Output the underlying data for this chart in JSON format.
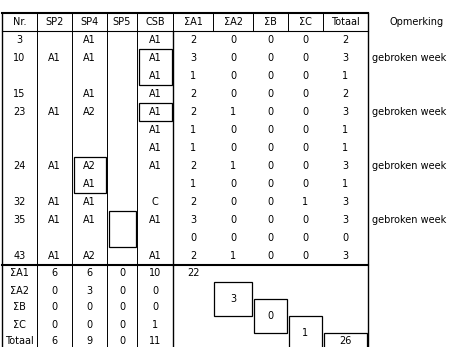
{
  "headers": [
    "Nr.",
    "SP2",
    "SP4",
    "SP5",
    "CSB",
    "ΣA1",
    "ΣA2",
    "ΣB",
    "ΣC",
    "Totaal",
    "Opmerking"
  ],
  "rows": [
    {
      "nr": "3",
      "sp2": "",
      "sp4": "A1",
      "sp5": "",
      "csb": "A1",
      "sa1": "2",
      "sa2": "0",
      "sb": "0",
      "sc": "0",
      "tot": "2",
      "opm": ""
    },
    {
      "nr": "10",
      "sp2": "A1",
      "sp4": "A1",
      "sp5": "",
      "csb": "A1",
      "sa1": "3",
      "sa2": "0",
      "sb": "0",
      "sc": "0",
      "tot": "3",
      "opm": "gebroken week"
    },
    {
      "nr": "",
      "sp2": "",
      "sp4": "",
      "sp5": "",
      "csb": "A1",
      "sa1": "1",
      "sa2": "0",
      "sb": "0",
      "sc": "0",
      "tot": "1",
      "opm": ""
    },
    {
      "nr": "15",
      "sp2": "",
      "sp4": "A1",
      "sp5": "",
      "csb": "A1",
      "sa1": "2",
      "sa2": "0",
      "sb": "0",
      "sc": "0",
      "tot": "2",
      "opm": ""
    },
    {
      "nr": "23",
      "sp2": "A1",
      "sp4": "A2",
      "sp5": "",
      "csb": "A1",
      "sa1": "2",
      "sa2": "1",
      "sb": "0",
      "sc": "0",
      "tot": "3",
      "opm": "gebroken week"
    },
    {
      "nr": "",
      "sp2": "",
      "sp4": "",
      "sp5": "",
      "csb": "A1",
      "sa1": "1",
      "sa2": "0",
      "sb": "0",
      "sc": "0",
      "tot": "1",
      "opm": ""
    },
    {
      "nr": "",
      "sp2": "",
      "sp4": "",
      "sp5": "",
      "csb": "A1",
      "sa1": "1",
      "sa2": "0",
      "sb": "0",
      "sc": "0",
      "tot": "1",
      "opm": ""
    },
    {
      "nr": "24",
      "sp2": "A1",
      "sp4": "A2",
      "sp5": "",
      "csb": "A1",
      "sa1": "2",
      "sa2": "1",
      "sb": "0",
      "sc": "0",
      "tot": "3",
      "opm": "gebroken week"
    },
    {
      "nr": "",
      "sp2": "",
      "sp4": "A1",
      "sp5": "",
      "csb": "",
      "sa1": "1",
      "sa2": "0",
      "sb": "0",
      "sc": "0",
      "tot": "1",
      "opm": ""
    },
    {
      "nr": "32",
      "sp2": "A1",
      "sp4": "A1",
      "sp5": "",
      "csb": "C",
      "sa1": "2",
      "sa2": "0",
      "sb": "0",
      "sc": "1",
      "tot": "3",
      "opm": ""
    },
    {
      "nr": "35",
      "sp2": "A1",
      "sp4": "A1",
      "sp5": "",
      "csb": "A1",
      "sa1": "3",
      "sa2": "0",
      "sb": "0",
      "sc": "0",
      "tot": "3",
      "opm": "gebroken week"
    },
    {
      "nr": "",
      "sp2": "",
      "sp4": "",
      "sp5": "",
      "csb": "",
      "sa1": "0",
      "sa2": "0",
      "sb": "0",
      "sc": "0",
      "tot": "0",
      "opm": ""
    },
    {
      "nr": "43",
      "sp2": "A1",
      "sp4": "A2",
      "sp5": "",
      "csb": "A1",
      "sa1": "2",
      "sa2": "1",
      "sb": "0",
      "sc": "0",
      "tot": "3",
      "opm": ""
    }
  ],
  "sum_rows": [
    {
      "label": "ΣA1",
      "sp2": "6",
      "sp4": "6",
      "sp5": "0",
      "csb": "10"
    },
    {
      "label": "ΣA2",
      "sp2": "0",
      "sp4": "3",
      "sp5": "0",
      "csb": "0"
    },
    {
      "label": "ΣB",
      "sp2": "0",
      "sp4": "0",
      "sp5": "0",
      "csb": "0"
    },
    {
      "label": "ΣC",
      "sp2": "0",
      "sp4": "0",
      "sp5": "0",
      "csb": "1"
    },
    {
      "label": "Totaal",
      "sp2": "6",
      "sp4": "9",
      "sp5": "0",
      "csb": "11"
    }
  ],
  "sum_vals": [
    "22",
    "3",
    "0",
    "1",
    "26"
  ],
  "background": "#ffffff",
  "text_color": "#000000",
  "line_color": "#000000",
  "font_size": 7.0
}
